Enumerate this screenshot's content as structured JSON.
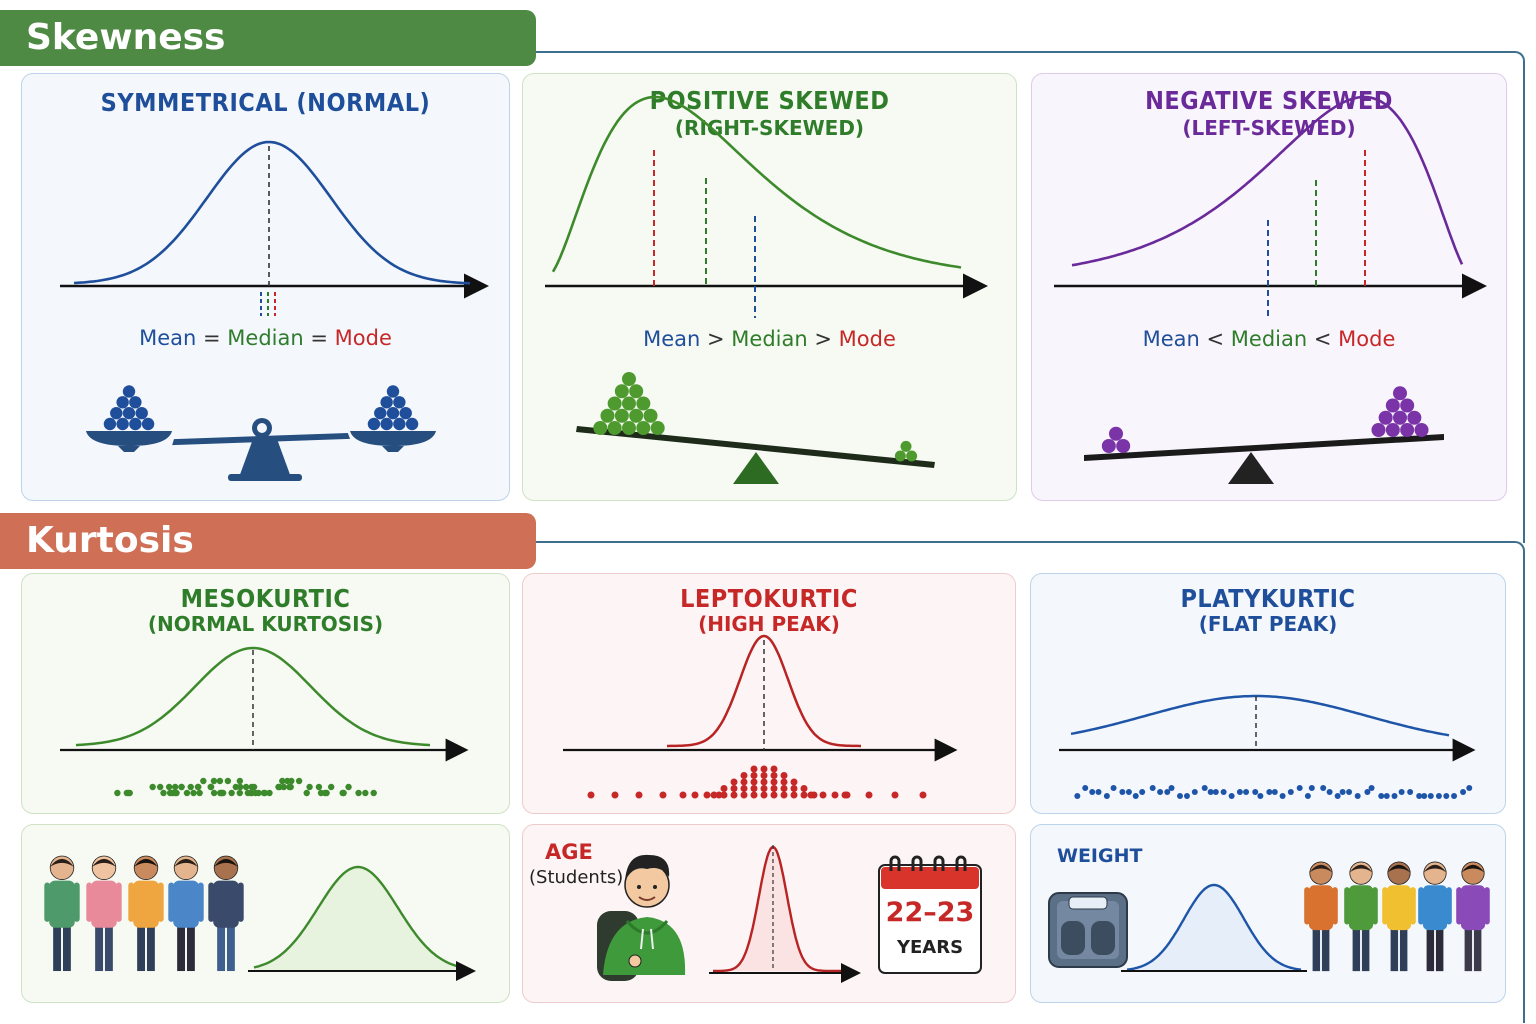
{
  "sections": {
    "skewness": "Skewness",
    "kurtosis": "Kurtosis"
  },
  "skew_panels": [
    {
      "title": "SYMMETRICAL (NORMAL)",
      "subtitle": "",
      "relation": [
        "Mean",
        "=",
        "Median",
        "=",
        "Mode"
      ]
    },
    {
      "title": "POSITIVE SKEWED",
      "subtitle": "(RIGHT-SKEWED)",
      "relation": [
        "Mean",
        ">",
        "Median",
        ">",
        "Mode"
      ]
    },
    {
      "title": "NEGATIVE SKEWED",
      "subtitle": "(LEFT-SKEWED)",
      "relation": [
        "Mean",
        "<",
        "Median",
        "<",
        "Mode"
      ]
    }
  ],
  "kurt_panels": [
    {
      "title": "MESOKURTIC",
      "subtitle": "(NORMAL KURTOSIS)"
    },
    {
      "title": "LEPTOKURTIC",
      "subtitle": "(HIGH PEAK)"
    },
    {
      "title": "PLATYKURTIC",
      "subtitle": "(FLAT PEAK)"
    }
  ],
  "examples": {
    "age_label": "AGE",
    "age_sub": "(Students)",
    "calendar_value": "22–23",
    "calendar_unit": "YEARS",
    "weight_label": "WEIGHT"
  },
  "colors": {
    "blue": "#1f4e9a",
    "green": "#2f7d2a",
    "red": "#c62828",
    "purple": "#6a2a9a"
  }
}
